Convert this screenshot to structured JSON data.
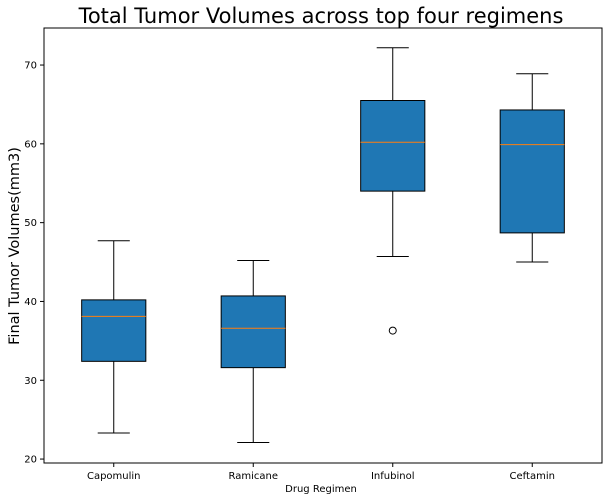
{
  "chart_data": {
    "type": "box",
    "title": "Total Tumor Volumes across top four regimens",
    "xlabel": "Drug Regimen",
    "ylabel": "Final Tumor Volumes(mm3)",
    "ylim": [
      19.5,
      74.7
    ],
    "yticks": [
      20,
      30,
      40,
      50,
      60,
      70
    ],
    "grid": false,
    "legend": "none",
    "box_color": "#1f77b4",
    "median_color": "#ff7f0e",
    "categories": [
      "Capomulin",
      "Ramicane",
      "Infubinol",
      "Ceftamin"
    ],
    "boxes": [
      {
        "min": 23.3,
        "q1": 32.4,
        "median": 38.1,
        "q3": 40.2,
        "max": 47.7,
        "outliers": []
      },
      {
        "min": 22.1,
        "q1": 31.6,
        "median": 36.6,
        "q3": 40.7,
        "max": 45.2,
        "outliers": []
      },
      {
        "min": 45.7,
        "q1": 54.0,
        "median": 60.2,
        "q3": 65.5,
        "max": 72.2,
        "outliers": [
          36.3
        ]
      },
      {
        "min": 45.0,
        "q1": 48.7,
        "median": 59.9,
        "q3": 64.3,
        "max": 68.9,
        "outliers": []
      }
    ]
  }
}
